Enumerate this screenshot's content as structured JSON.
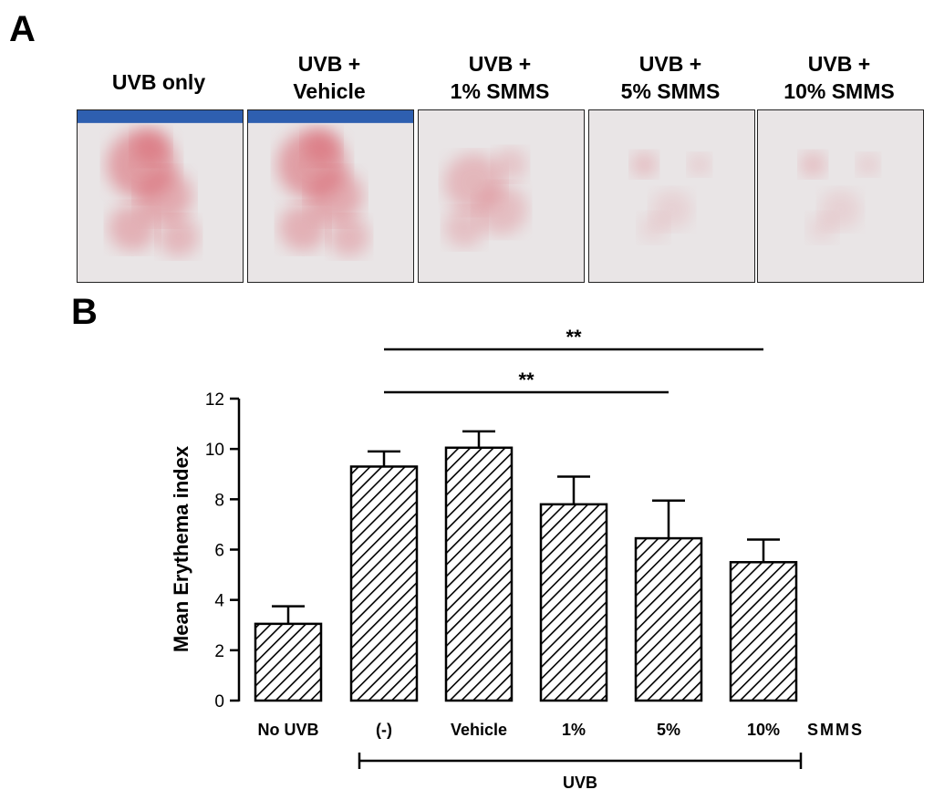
{
  "panels": {
    "a_letter": "A",
    "b_letter": "B"
  },
  "photos": [
    {
      "label_lines": [
        "UVB only"
      ],
      "erythema": "severe",
      "blue_edge": true
    },
    {
      "label_lines": [
        "UVB +",
        "Vehicle"
      ],
      "erythema": "severe",
      "blue_edge": true
    },
    {
      "label_lines": [
        "UVB +",
        "1%  SMMS"
      ],
      "erythema": "moderate",
      "blue_edge": false
    },
    {
      "label_lines": [
        "UVB +",
        "5%  SMMS"
      ],
      "erythema": "mild",
      "blue_edge": false
    },
    {
      "label_lines": [
        "UVB +",
        "10%  SMMS"
      ],
      "erythema": "mild",
      "blue_edge": false
    }
  ],
  "chart_data": {
    "type": "bar",
    "ylabel": "Mean Erythema index",
    "ylim": [
      0,
      12
    ],
    "yticks": [
      0,
      2,
      4,
      6,
      8,
      10,
      12
    ],
    "categories": [
      "No UVB",
      "(-)",
      "Vehicle",
      "1%",
      "5%",
      "10%"
    ],
    "values": [
      3.05,
      9.3,
      10.05,
      7.8,
      6.45,
      5.5
    ],
    "errors": [
      0.7,
      0.6,
      0.65,
      1.1,
      1.5,
      0.9
    ],
    "bar_pattern": "diagonal-hatch",
    "axis_note": "SMMS",
    "group_bracket": {
      "label": "UVB",
      "from_category": 1,
      "to_category": 5
    },
    "significance": [
      {
        "from_category": 1,
        "to_category": 4,
        "label": "**"
      },
      {
        "from_category": 1,
        "to_category": 5,
        "label": "**"
      }
    ]
  }
}
